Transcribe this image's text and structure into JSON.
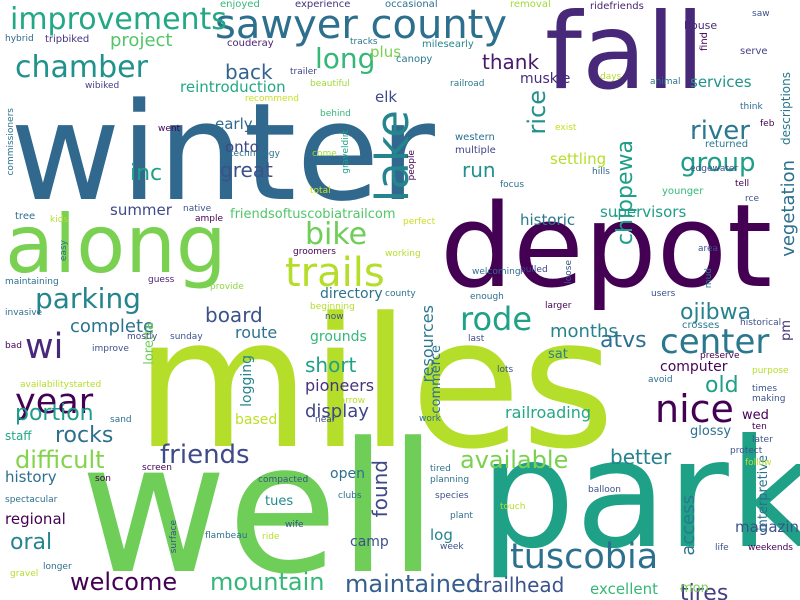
{
  "words": [
    {
      "text": "winter",
      "color": "#31688e"
    },
    {
      "text": "miles",
      "color": "#b5de2b"
    },
    {
      "text": "well",
      "color": "#6ece58"
    },
    {
      "text": "park",
      "color": "#1fa187"
    },
    {
      "text": "depot",
      "color": "#440154"
    },
    {
      "text": "fall",
      "color": "#482878"
    },
    {
      "text": "along",
      "color": "#7ad151"
    },
    {
      "text": "sawyer county",
      "color": "#2d708e"
    },
    {
      "text": "trails",
      "color": "#b5de2b"
    },
    {
      "text": "lake",
      "color": "#25858e"
    },
    {
      "text": "tuscobia",
      "color": "#2d708e"
    },
    {
      "text": "rode",
      "color": "#1fa187"
    },
    {
      "text": "center",
      "color": "#2a788e"
    },
    {
      "text": "nice",
      "color": "#440154"
    },
    {
      "text": "year",
      "color": "#440154"
    },
    {
      "text": "improvements",
      "color": "#22a884"
    },
    {
      "text": "chamber",
      "color": "#20928c"
    },
    {
      "text": "parking",
      "color": "#25858e"
    },
    {
      "text": "bike",
      "color": "#6ece58"
    },
    {
      "text": "long",
      "color": "#35b779"
    },
    {
      "text": "river",
      "color": "#2a788e"
    },
    {
      "text": "group",
      "color": "#1f9e89"
    },
    {
      "text": "wi",
      "color": "#482878"
    },
    {
      "text": "friends",
      "color": "#3e4a89"
    },
    {
      "text": "available",
      "color": "#7ad151"
    },
    {
      "text": "welcome",
      "color": "#440154"
    },
    {
      "text": "mountain",
      "color": "#35b779"
    },
    {
      "text": "maintained",
      "color": "#355f8d"
    },
    {
      "text": "difficult",
      "color": "#84d44b"
    },
    {
      "text": "rocks",
      "color": "#2d708e"
    },
    {
      "text": "portion",
      "color": "#1f9e89"
    },
    {
      "text": "oral",
      "color": "#25858e"
    },
    {
      "text": "ojibwa",
      "color": "#26828e"
    },
    {
      "text": "atvs",
      "color": "#2d708e"
    },
    {
      "text": "tires",
      "color": "#433e85"
    },
    {
      "text": "old",
      "color": "#1f9e89"
    },
    {
      "text": "short",
      "color": "#1fa187"
    },
    {
      "text": "board",
      "color": "#3b528b"
    },
    {
      "text": "great",
      "color": "#3b528b"
    },
    {
      "text": "thank",
      "color": "#481a6c"
    },
    {
      "text": "run",
      "color": "#20928c"
    },
    {
      "text": "rice",
      "color": "#21918c"
    },
    {
      "text": "chippewa",
      "color": "#1f9e89"
    },
    {
      "text": "inc",
      "color": "#1fa187"
    },
    {
      "text": "back",
      "color": "#33638d"
    },
    {
      "text": "project",
      "color": "#52c569"
    },
    {
      "text": "complete",
      "color": "#2c728e"
    },
    {
      "text": "display",
      "color": "#404688"
    },
    {
      "text": "trailhead",
      "color": "#3b528b"
    },
    {
      "text": "better",
      "color": "#26828e"
    },
    {
      "text": "found",
      "color": "#3e4a89"
    },
    {
      "text": "months",
      "color": "#26828e"
    },
    {
      "text": "vegetation",
      "color": "#2d708e"
    },
    {
      "text": "access",
      "color": "#2a788e"
    },
    {
      "text": "history",
      "color": "#2d708e"
    },
    {
      "text": "regional",
      "color": "#440154"
    },
    {
      "text": "route",
      "color": "#2c728e"
    },
    {
      "text": "services",
      "color": "#20928c"
    },
    {
      "text": "supervisors",
      "color": "#1f9e89"
    },
    {
      "text": "settling",
      "color": "#b5de2b"
    },
    {
      "text": "summer",
      "color": "#3e4a89"
    },
    {
      "text": "historic",
      "color": "#2a788e"
    },
    {
      "text": "muskie",
      "color": "#472c7a"
    },
    {
      "text": "computer",
      "color": "#450559"
    },
    {
      "text": "pioneers",
      "color": "#46337f"
    },
    {
      "text": "resources",
      "color": "#2a788e"
    },
    {
      "text": "railroading",
      "color": "#22a884"
    },
    {
      "text": "excellent",
      "color": "#35b779"
    },
    {
      "text": "magazines",
      "color": "#3b528b"
    },
    {
      "text": "plus",
      "color": "#7ad151"
    },
    {
      "text": "elk",
      "color": "#3e4a89"
    },
    {
      "text": "onto",
      "color": "#404688"
    },
    {
      "text": "early",
      "color": "#31688e"
    },
    {
      "text": "reintroduction",
      "color": "#22a884"
    },
    {
      "text": "friendsoftuscobiatrailcom",
      "color": "#52c569"
    },
    {
      "text": "directory",
      "color": "#2c728e"
    },
    {
      "text": "grounds",
      "color": "#35b779"
    },
    {
      "text": "logging",
      "color": "#25858e"
    },
    {
      "text": "based",
      "color": "#bddf26"
    },
    {
      "text": "staff",
      "color": "#22a884"
    },
    {
      "text": "open",
      "color": "#2d708e"
    },
    {
      "text": "camp",
      "color": "#3b528b"
    },
    {
      "text": "log",
      "color": "#26828e"
    },
    {
      "text": "tues",
      "color": "#238a8d"
    },
    {
      "text": "sat",
      "color": "#27808e"
    },
    {
      "text": "wed",
      "color": "#440154"
    },
    {
      "text": "pm",
      "color": "#46337f"
    },
    {
      "text": "mon",
      "color": "#7ad151"
    },
    {
      "text": "interpretive",
      "color": "#2c728e"
    },
    {
      "text": "glossy",
      "color": "#2d708e"
    },
    {
      "text": "descriptions",
      "color": "#2a788e"
    },
    {
      "text": "commerce",
      "color": "#2d708e"
    },
    {
      "text": "loretta",
      "color": "#6ece58"
    },
    {
      "text": "house",
      "color": "#482878"
    },
    {
      "text": "ridefriends",
      "color": "#481f70"
    },
    {
      "text": "saw",
      "color": "#3b528b"
    },
    {
      "text": "serve",
      "color": "#433e85"
    },
    {
      "text": "find",
      "color": "#440154"
    },
    {
      "text": "removal",
      "color": "#9fda3a"
    },
    {
      "text": "occasional",
      "color": "#2c728e"
    },
    {
      "text": "experience",
      "color": "#46337f"
    },
    {
      "text": "enjoyed",
      "color": "#35b779"
    },
    {
      "text": "hybrid",
      "color": "#31688e"
    },
    {
      "text": "tripbiked",
      "color": "#46337f"
    },
    {
      "text": "couderay",
      "color": "#481f70"
    },
    {
      "text": "trailer",
      "color": "#3e4a89"
    },
    {
      "text": "canopy",
      "color": "#2a788e"
    },
    {
      "text": "milesearly",
      "color": "#25858e"
    },
    {
      "text": "tracks",
      "color": "#2a788e"
    },
    {
      "text": "wibiked",
      "color": "#433e85"
    },
    {
      "text": "beautiful",
      "color": "#a0da39"
    },
    {
      "text": "recommend",
      "color": "#c8e020"
    },
    {
      "text": "railroad",
      "color": "#2a788e"
    },
    {
      "text": "days",
      "color": "#b5de2b"
    },
    {
      "text": "animal",
      "color": "#2c728e"
    },
    {
      "text": "think",
      "color": "#2d708e"
    },
    {
      "text": "feb",
      "color": "#440154"
    },
    {
      "text": "returned",
      "color": "#2a788e"
    },
    {
      "text": "exist",
      "color": "#c8e020"
    },
    {
      "text": "western",
      "color": "#2c728e"
    },
    {
      "text": "multiple",
      "color": "#404688"
    },
    {
      "text": "focus",
      "color": "#2d708e"
    },
    {
      "text": "hills",
      "color": "#33638d"
    },
    {
      "text": "younger",
      "color": "#35b779"
    },
    {
      "text": "tell",
      "color": "#440154"
    },
    {
      "text": "rce",
      "color": "#3b528b"
    },
    {
      "text": "edgewater",
      "color": "#3b528b"
    },
    {
      "text": "commissioners",
      "color": "#2c728e"
    },
    {
      "text": "went",
      "color": "#440154"
    },
    {
      "text": "technology",
      "color": "#2d708e"
    },
    {
      "text": "behind",
      "color": "#35b779"
    },
    {
      "text": "come",
      "color": "#9fda3a"
    },
    {
      "text": "graveldirt",
      "color": "#1fa187"
    },
    {
      "text": "people",
      "color": "#440154"
    },
    {
      "text": "total",
      "color": "#c8e020"
    },
    {
      "text": "tree",
      "color": "#2d708e"
    },
    {
      "text": "kids",
      "color": "#b5de2b"
    },
    {
      "text": "native",
      "color": "#3b528b"
    },
    {
      "text": "ample",
      "color": "#440154"
    },
    {
      "text": "perfect",
      "color": "#c8e020"
    },
    {
      "text": "easy",
      "color": "#2d708e"
    },
    {
      "text": "groomers",
      "color": "#440154"
    },
    {
      "text": "working",
      "color": "#b5de2b"
    },
    {
      "text": "area",
      "color": "#3b528b"
    },
    {
      "text": "mud",
      "color": "#2a788e"
    },
    {
      "text": "guess",
      "color": "#481f70"
    },
    {
      "text": "provide",
      "color": "#8fd744"
    },
    {
      "text": "loose",
      "color": "#3b528b"
    },
    {
      "text": "pulled",
      "color": "#404688"
    },
    {
      "text": "users",
      "color": "#3b528b"
    },
    {
      "text": "crosses",
      "color": "#2a788e"
    },
    {
      "text": "historical",
      "color": "#3b528b"
    },
    {
      "text": "maintaining",
      "color": "#2d708e"
    },
    {
      "text": "beginning",
      "color": "#b5de2b"
    },
    {
      "text": "county",
      "color": "#2c728e"
    },
    {
      "text": "welcoming",
      "color": "#2d708e"
    },
    {
      "text": "enough",
      "color": "#2d708e"
    },
    {
      "text": "larger",
      "color": "#440154"
    },
    {
      "text": "last",
      "color": "#3e4a89"
    },
    {
      "text": "invasive",
      "color": "#2d708e"
    },
    {
      "text": "now",
      "color": "#3b528b"
    },
    {
      "text": "bad",
      "color": "#440154"
    },
    {
      "text": "improve",
      "color": "#3b528b"
    },
    {
      "text": "mostly",
      "color": "#3e4a89"
    },
    {
      "text": "sunday",
      "color": "#3b528b"
    },
    {
      "text": "lots",
      "color": "#3b528b"
    },
    {
      "text": "preserve",
      "color": "#440154"
    },
    {
      "text": "purpose",
      "color": "#b5de2b"
    },
    {
      "text": "avoid",
      "color": "#2d708e"
    },
    {
      "text": "times",
      "color": "#3b528b"
    },
    {
      "text": "making",
      "color": "#3b528b"
    },
    {
      "text": "availabilitystarted",
      "color": "#b5de2b"
    },
    {
      "text": "narrow",
      "color": "#b5de2b"
    },
    {
      "text": "sand",
      "color": "#2d708e"
    },
    {
      "text": "near",
      "color": "#3b528b"
    },
    {
      "text": "work",
      "color": "#2d708e"
    },
    {
      "text": "ten",
      "color": "#440154"
    },
    {
      "text": "later",
      "color": "#3b528b"
    },
    {
      "text": "protect",
      "color": "#3b528b"
    },
    {
      "text": "follow",
      "color": "#b5de2b"
    },
    {
      "text": "screen",
      "color": "#440154"
    },
    {
      "text": "tired",
      "color": "#2d708e"
    },
    {
      "text": "planning",
      "color": "#2d708e"
    },
    {
      "text": "son",
      "color": "#440154"
    },
    {
      "text": "compacted",
      "color": "#3b528b"
    },
    {
      "text": "clubs",
      "color": "#2d708e"
    },
    {
      "text": "species",
      "color": "#3b528b"
    },
    {
      "text": "balloon",
      "color": "#3b528b"
    },
    {
      "text": "spectacular",
      "color": "#2d708e"
    },
    {
      "text": "wife",
      "color": "#3b528b"
    },
    {
      "text": "plant",
      "color": "#2d708e"
    },
    {
      "text": "touch",
      "color": "#b5de2b"
    },
    {
      "text": "surface",
      "color": "#3b528b"
    },
    {
      "text": "flambeau",
      "color": "#2d708e"
    },
    {
      "text": "ride",
      "color": "#b5de2b"
    },
    {
      "text": "week",
      "color": "#3b528b"
    },
    {
      "text": "life",
      "color": "#3b528b"
    },
    {
      "text": "weekends",
      "color": "#440154"
    },
    {
      "text": "longer",
      "color": "#2d708e"
    },
    {
      "text": "gravel",
      "color": "#b5de2b"
    }
  ]
}
